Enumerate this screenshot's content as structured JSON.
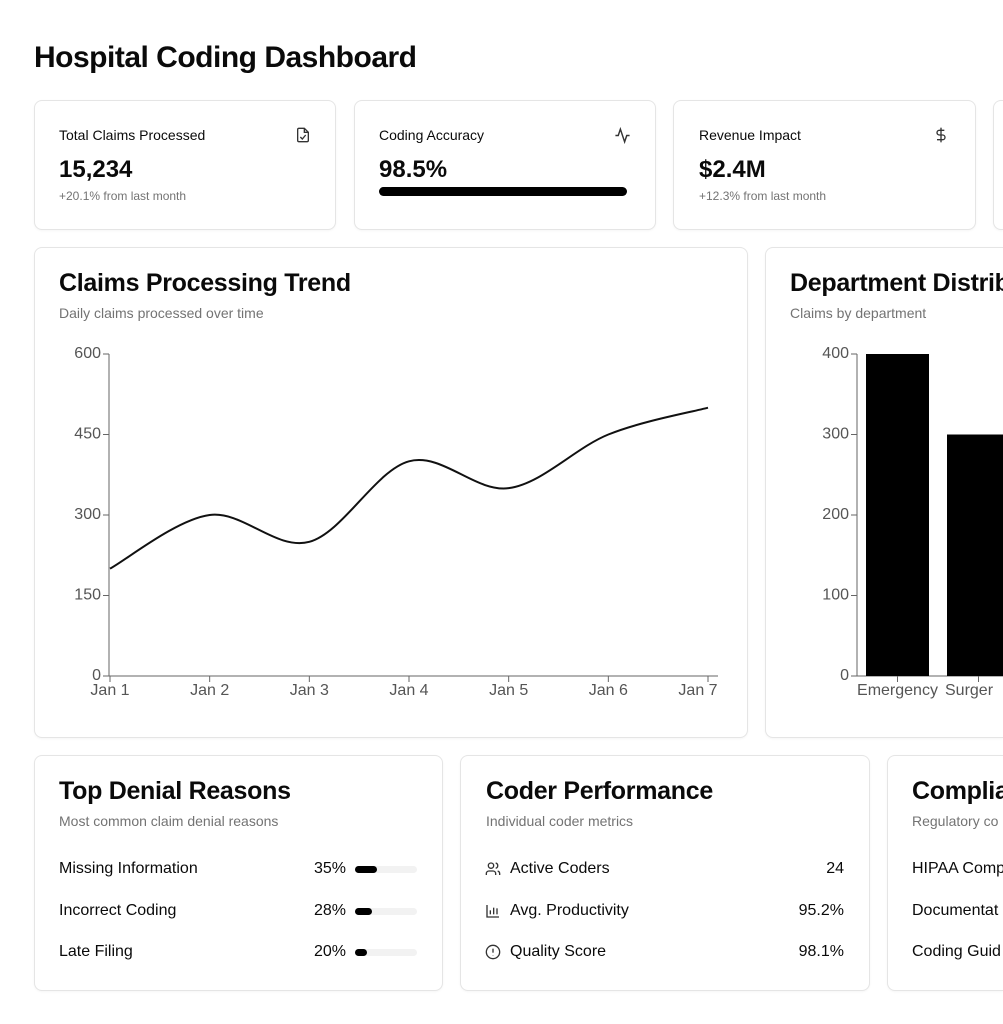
{
  "header": {
    "title": "Hospital Coding Dashboard"
  },
  "kpis": [
    {
      "title": "Total Claims Processed",
      "value": "15,234",
      "note": "+20.1% from last month"
    },
    {
      "title": "Coding Accuracy",
      "value": 98.5,
      "value_label": "98.5%"
    },
    {
      "title": "Revenue Impact",
      "value": "$2.4M",
      "note": "+12.3% from last month"
    }
  ],
  "chart_data": [
    {
      "type": "line",
      "title": "Claims Processing Trend",
      "subtitle": "Daily claims processed over time",
      "categories": [
        "Jan 1",
        "Jan 2",
        "Jan 3",
        "Jan 4",
        "Jan 5",
        "Jan 6",
        "Jan 7"
      ],
      "values": [
        200,
        300,
        250,
        400,
        350,
        450,
        500
      ],
      "color": "#111111",
      "ylim": [
        0,
        600
      ],
      "yticks": [
        0,
        150,
        300,
        450,
        600
      ]
    },
    {
      "type": "bar",
      "title": "Department Distrib",
      "subtitle": "Claims by department",
      "categories": [
        "Emergency",
        "Surger"
      ],
      "values": [
        400,
        300
      ],
      "color": "#000000",
      "ylim": [
        0,
        400
      ],
      "yticks": [
        0,
        100,
        200,
        300,
        400
      ]
    }
  ],
  "denial_reasons": {
    "title": "Top Denial Reasons",
    "subtitle": "Most common claim denial reasons",
    "items": [
      {
        "label": "Missing Information",
        "value": 35,
        "value_label": "35%"
      },
      {
        "label": "Incorrect Coding",
        "value": 28,
        "value_label": "28%"
      },
      {
        "label": "Late Filing",
        "value": 20,
        "value_label": "20%"
      }
    ]
  },
  "coder_performance": {
    "title": "Coder Performance",
    "subtitle": "Individual coder metrics",
    "items": [
      {
        "label": "Active Coders",
        "value": "24"
      },
      {
        "label": "Avg. Productivity",
        "value": "95.2%"
      },
      {
        "label": "Quality Score",
        "value": "98.1%"
      }
    ]
  },
  "compliance": {
    "title": "Complia",
    "subtitle": "Regulatory co",
    "items": [
      "HIPAA Comp",
      "Documentat",
      "Coding Guid"
    ]
  }
}
